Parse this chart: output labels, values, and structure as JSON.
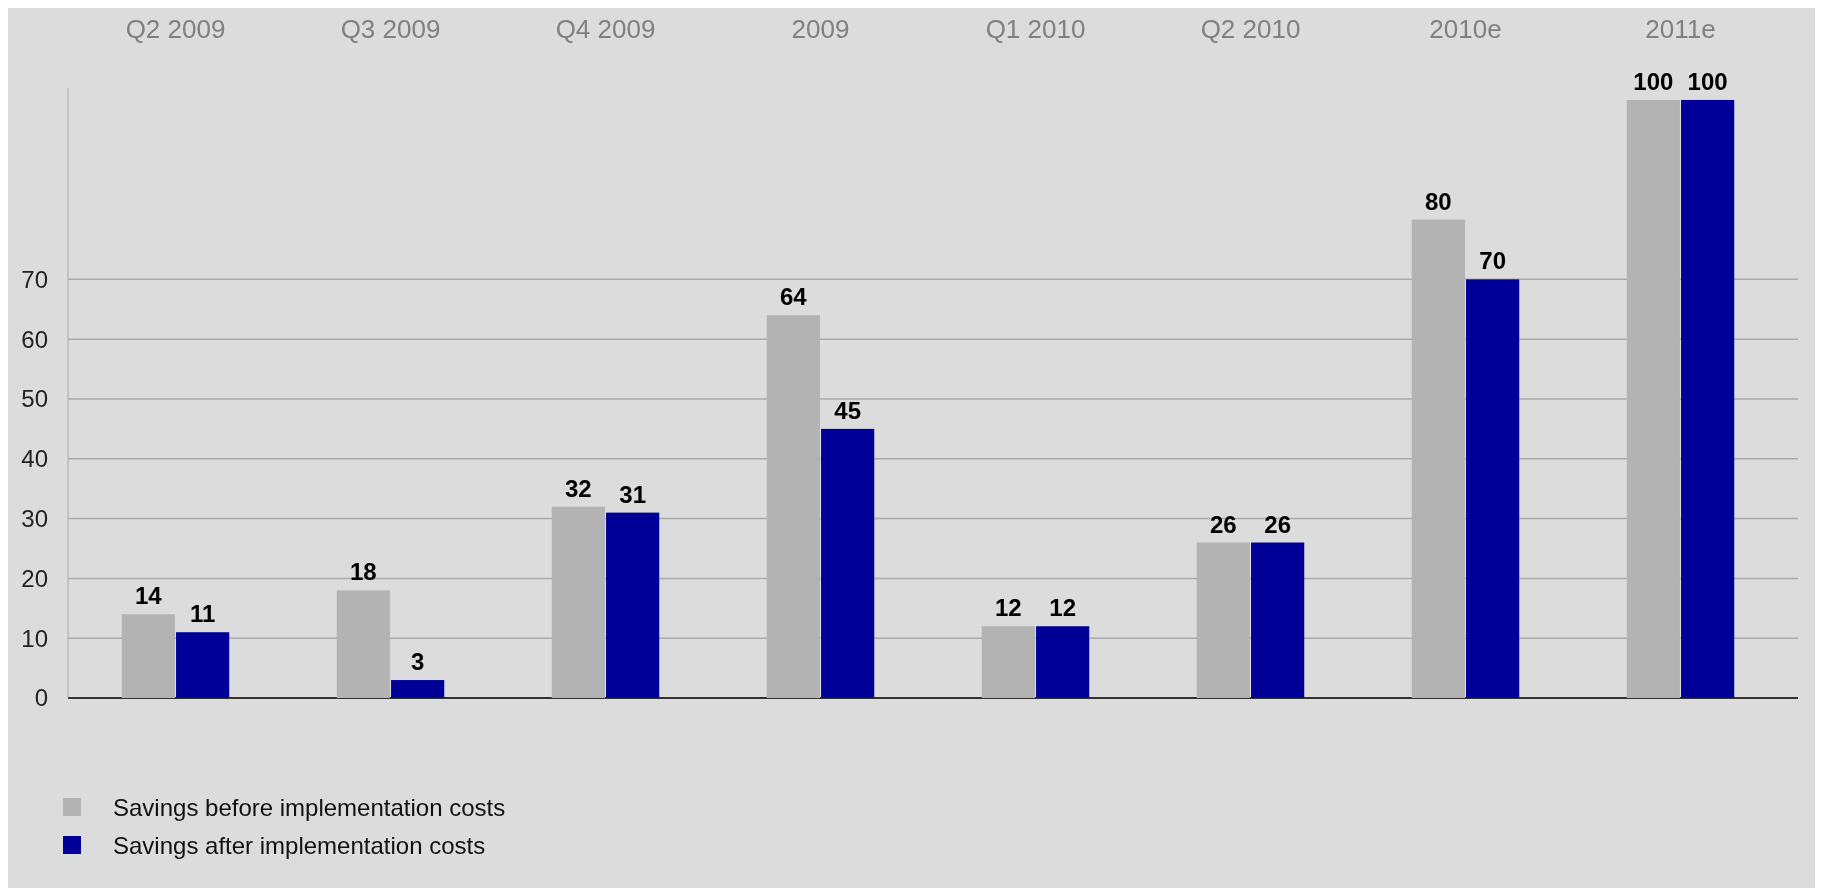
{
  "chart_data": {
    "type": "bar",
    "categories": [
      "Q2 2009",
      "Q3 2009",
      "Q4 2009",
      "2009",
      "Q1 2010",
      "Q2 2010",
      "2010e",
      "2011e"
    ],
    "series": [
      {
        "name": "Savings before implementation costs",
        "color": "#b3b3b3",
        "values": [
          14,
          18,
          32,
          64,
          12,
          26,
          80,
          100
        ]
      },
      {
        "name": "Savings after implementation costs",
        "color": "#000099",
        "values": [
          11,
          3,
          31,
          45,
          12,
          26,
          70,
          100
        ]
      }
    ],
    "ylim": [
      0,
      102
    ],
    "yticks": [
      0,
      10,
      20,
      30,
      40,
      50,
      60,
      70
    ],
    "grid": "y",
    "legend": "bottom left",
    "data_labels": true
  }
}
